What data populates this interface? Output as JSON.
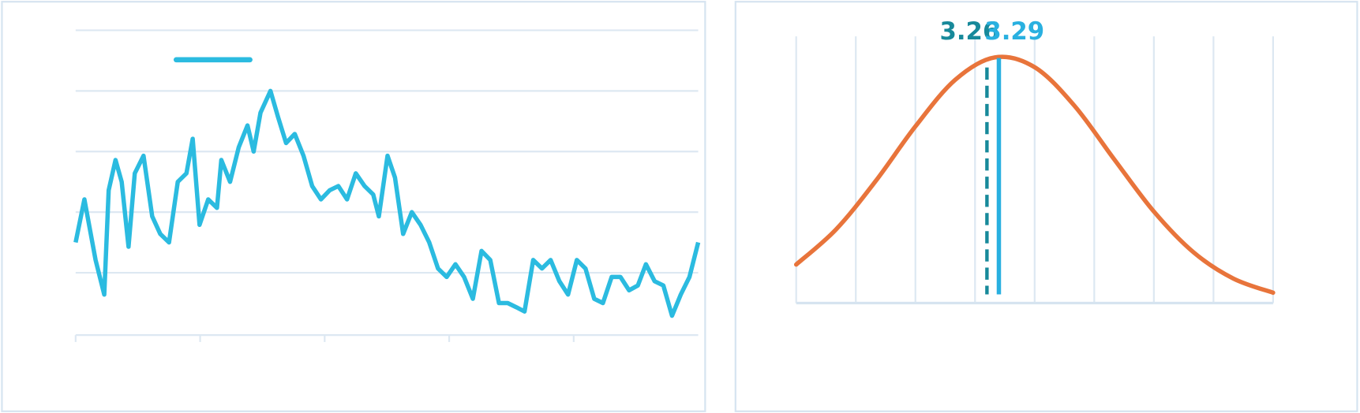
{
  "chart_data": [
    {
      "type": "line",
      "x": [
        0,
        1.4,
        3.2,
        4.6,
        5.3,
        6.4,
        7.4,
        8.5,
        9.5,
        10.9,
        12.3,
        13.6,
        15.0,
        16.4,
        17.8,
        18.8,
        19.9,
        21.3,
        22.7,
        23.4,
        24.8,
        26.2,
        27.6,
        28.6,
        29.7,
        31.3,
        32.5,
        33.8,
        35.2,
        36.6,
        38.0,
        39.4,
        40.8,
        42.2,
        43.6,
        45.0,
        46.4,
        47.8,
        48.7,
        50.1,
        51.3,
        52.6,
        54.0,
        55.4,
        56.8,
        58.2,
        59.6,
        61.0,
        62.4,
        63.8,
        65.2,
        66.6,
        68.0,
        69.4,
        70.8,
        72.1,
        73.5,
        74.9,
        76.3,
        77.7,
        79.1,
        80.5,
        81.9,
        83.3,
        84.7,
        86.1,
        87.5,
        88.9,
        90.3,
        91.6,
        93.0,
        94.4,
        95.8,
        97.2,
        98.6,
        100
      ],
      "series": [
        {
          "color": "#2bbbe0",
          "values": [
            1.5,
            2.21,
            1.21,
            0.64,
            2.36,
            2.86,
            2.5,
            1.43,
            2.64,
            2.93,
            1.93,
            1.64,
            1.5,
            2.5,
            2.64,
            3.21,
            1.79,
            2.21,
            2.07,
            2.86,
            2.5,
            3.07,
            3.43,
            3.0,
            3.64,
            4.0,
            3.57,
            3.14,
            3.29,
            2.93,
            2.43,
            2.21,
            2.36,
            2.43,
            2.21,
            2.64,
            2.43,
            2.29,
            1.93,
            2.93,
            2.57,
            1.64,
            2.0,
            1.79,
            1.5,
            1.07,
            0.93,
            1.14,
            0.93,
            0.57,
            1.36,
            1.21,
            0.5,
            0.5,
            0.43,
            0.36,
            1.21,
            1.07,
            1.21,
            0.86,
            0.64,
            1.21,
            1.07,
            0.57,
            0.5,
            0.93,
            0.93,
            0.71,
            0.79,
            1.14,
            0.86,
            0.79,
            0.29,
            0.64,
            0.93,
            1.5
          ]
        }
      ],
      "xlim": [
        0,
        100
      ],
      "xticks": [
        0,
        20,
        40,
        60,
        80
      ],
      "ylim": [
        0,
        5
      ],
      "yticks": [
        1,
        2,
        3,
        4,
        5
      ],
      "grid": true
    },
    {
      "type": "density",
      "x": [
        2.78,
        2.88,
        2.98,
        3.08,
        3.18,
        3.28,
        3.38,
        3.48,
        3.58,
        3.68,
        3.78,
        3.88,
        3.98
      ],
      "series": [
        {
          "color": "#e8743b",
          "values": [
            0.231,
            0.441,
            0.732,
            1.06,
            1.339,
            1.474,
            1.415,
            1.184,
            0.863,
            0.549,
            0.304,
            0.147,
            0.062
          ]
        }
      ],
      "xlim": [
        2.78,
        3.98
      ],
      "xticks": [
        2.78,
        2.93,
        3.08,
        3.23,
        3.38,
        3.53,
        3.68,
        3.83,
        3.98
      ],
      "ylim": [
        0,
        1.6
      ],
      "grid": true,
      "markers": [
        {
          "value": 3.26,
          "color": "#17899a",
          "style": "dashed"
        },
        {
          "value": 3.29,
          "color": "#29b0e0",
          "style": "solid"
        }
      ]
    }
  ]
}
